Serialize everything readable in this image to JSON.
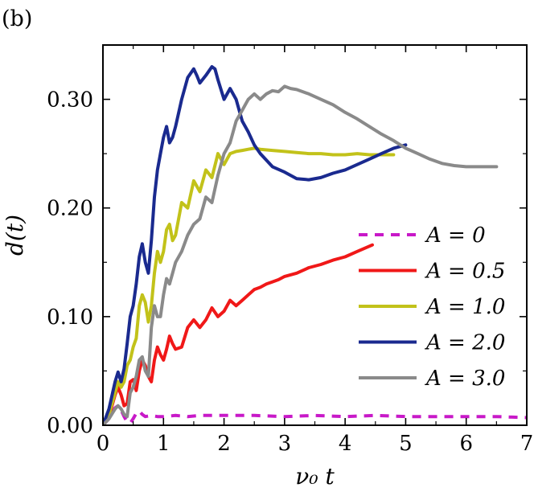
{
  "panel_label": "(b)",
  "chart_data": {
    "type": "line",
    "xlabel": "ν₀ t",
    "ylabel": "d(t)",
    "xlim": [
      0,
      7
    ],
    "ylim": [
      0,
      0.35
    ],
    "x_ticks": [
      0,
      1,
      2,
      3,
      4,
      5,
      6,
      7
    ],
    "x_tick_labels": [
      "0",
      "1",
      "2",
      "3",
      "4",
      "5",
      "6",
      "7"
    ],
    "y_ticks": [
      0,
      0.1,
      0.2,
      0.3
    ],
    "y_tick_labels": [
      "0.00",
      "0.10",
      "0.20",
      "0.30"
    ],
    "grid": false,
    "legend_position": "right",
    "series": [
      {
        "name": "A = 0",
        "color": "#c819c8",
        "dash": true,
        "x": [
          0,
          0.1,
          0.2,
          0.25,
          0.3,
          0.35,
          0.4,
          0.45,
          0.5,
          0.55,
          0.6,
          0.65,
          0.7,
          0.8,
          0.9,
          1.0,
          1.2,
          1.4,
          1.6,
          1.8,
          2.0,
          2.5,
          3.0,
          3.5,
          4.0,
          4.5,
          5.0,
          5.5,
          6.0,
          6.5,
          7.0
        ],
        "y": [
          0,
          0.006,
          0.016,
          0.018,
          0.014,
          0.008,
          0.003,
          0.002,
          0.006,
          0.011,
          0.013,
          0.01,
          0.008,
          0.009,
          0.008,
          0.008,
          0.009,
          0.008,
          0.009,
          0.009,
          0.009,
          0.009,
          0.008,
          0.009,
          0.008,
          0.009,
          0.008,
          0.008,
          0.008,
          0.008,
          0.007
        ]
      },
      {
        "name": "A = 0.5",
        "color": "#f01818",
        "dash": false,
        "x": [
          0,
          0.1,
          0.2,
          0.25,
          0.3,
          0.35,
          0.4,
          0.45,
          0.5,
          0.55,
          0.6,
          0.65,
          0.7,
          0.75,
          0.8,
          0.85,
          0.9,
          0.95,
          1.0,
          1.05,
          1.1,
          1.15,
          1.2,
          1.3,
          1.4,
          1.5,
          1.6,
          1.7,
          1.8,
          1.9,
          2.0,
          2.1,
          2.2,
          2.3,
          2.4,
          2.5,
          2.6,
          2.7,
          2.8,
          2.9,
          3.0,
          3.2,
          3.4,
          3.6,
          3.8,
          4.0,
          4.2,
          4.45
        ],
        "y": [
          0,
          0.008,
          0.028,
          0.035,
          0.028,
          0.018,
          0.02,
          0.04,
          0.042,
          0.032,
          0.05,
          0.06,
          0.055,
          0.045,
          0.04,
          0.06,
          0.072,
          0.065,
          0.06,
          0.07,
          0.082,
          0.075,
          0.07,
          0.072,
          0.09,
          0.097,
          0.09,
          0.097,
          0.108,
          0.1,
          0.105,
          0.115,
          0.11,
          0.115,
          0.12,
          0.125,
          0.127,
          0.13,
          0.132,
          0.134,
          0.137,
          0.14,
          0.145,
          0.148,
          0.152,
          0.155,
          0.16,
          0.166
        ]
      },
      {
        "name": "A = 1.0",
        "color": "#c2c21a",
        "dash": false,
        "x": [
          0,
          0.1,
          0.2,
          0.25,
          0.3,
          0.35,
          0.4,
          0.45,
          0.5,
          0.55,
          0.6,
          0.65,
          0.7,
          0.75,
          0.8,
          0.85,
          0.9,
          0.95,
          1.0,
          1.05,
          1.1,
          1.15,
          1.2,
          1.3,
          1.4,
          1.5,
          1.6,
          1.7,
          1.8,
          1.9,
          2.0,
          2.1,
          2.2,
          2.3,
          2.4,
          2.5,
          2.6,
          2.8,
          3.0,
          3.2,
          3.4,
          3.6,
          3.8,
          4.0,
          4.2,
          4.4,
          4.6,
          4.8
        ],
        "y": [
          0,
          0.01,
          0.03,
          0.04,
          0.035,
          0.04,
          0.055,
          0.06,
          0.072,
          0.08,
          0.11,
          0.12,
          0.113,
          0.095,
          0.11,
          0.14,
          0.16,
          0.15,
          0.16,
          0.18,
          0.185,
          0.17,
          0.175,
          0.205,
          0.2,
          0.225,
          0.215,
          0.235,
          0.228,
          0.25,
          0.24,
          0.25,
          0.252,
          0.253,
          0.254,
          0.255,
          0.254,
          0.253,
          0.252,
          0.251,
          0.25,
          0.25,
          0.249,
          0.249,
          0.25,
          0.249,
          0.249,
          0.249
        ]
      },
      {
        "name": "A = 2.0",
        "color": "#1a2a8f",
        "dash": false,
        "x": [
          0,
          0.1,
          0.2,
          0.25,
          0.3,
          0.35,
          0.4,
          0.45,
          0.5,
          0.55,
          0.6,
          0.65,
          0.7,
          0.75,
          0.8,
          0.85,
          0.9,
          0.95,
          1.0,
          1.05,
          1.1,
          1.15,
          1.2,
          1.3,
          1.4,
          1.5,
          1.55,
          1.6,
          1.7,
          1.8,
          1.85,
          1.9,
          2.0,
          2.1,
          2.2,
          2.3,
          2.4,
          2.5,
          2.6,
          2.8,
          3.0,
          3.2,
          3.4,
          3.6,
          3.8,
          4.0,
          4.2,
          4.4,
          4.6,
          4.8,
          5.0
        ],
        "y": [
          0,
          0.015,
          0.04,
          0.049,
          0.04,
          0.052,
          0.075,
          0.1,
          0.11,
          0.13,
          0.155,
          0.167,
          0.15,
          0.14,
          0.17,
          0.21,
          0.235,
          0.25,
          0.265,
          0.275,
          0.26,
          0.265,
          0.275,
          0.3,
          0.32,
          0.328,
          0.322,
          0.315,
          0.322,
          0.33,
          0.328,
          0.318,
          0.3,
          0.31,
          0.3,
          0.28,
          0.27,
          0.258,
          0.25,
          0.238,
          0.233,
          0.227,
          0.226,
          0.228,
          0.232,
          0.235,
          0.24,
          0.245,
          0.25,
          0.255,
          0.258
        ]
      },
      {
        "name": "A = 3.0",
        "color": "#8a8a8a",
        "dash": false,
        "x": [
          0,
          0.1,
          0.2,
          0.25,
          0.3,
          0.35,
          0.4,
          0.45,
          0.5,
          0.55,
          0.6,
          0.65,
          0.7,
          0.75,
          0.8,
          0.85,
          0.9,
          0.95,
          1.0,
          1.05,
          1.1,
          1.15,
          1.2,
          1.3,
          1.4,
          1.5,
          1.6,
          1.7,
          1.8,
          1.9,
          2.0,
          2.1,
          2.2,
          2.3,
          2.4,
          2.5,
          2.6,
          2.7,
          2.8,
          2.9,
          3.0,
          3.1,
          3.2,
          3.4,
          3.6,
          3.8,
          4.0,
          4.2,
          4.4,
          4.6,
          4.8,
          5.0,
          5.2,
          5.4,
          5.6,
          5.8,
          6.0,
          6.2,
          6.5
        ],
        "y": [
          0,
          0.006,
          0.015,
          0.018,
          0.015,
          0.01,
          0.008,
          0.03,
          0.035,
          0.045,
          0.06,
          0.063,
          0.05,
          0.045,
          0.09,
          0.11,
          0.1,
          0.1,
          0.12,
          0.135,
          0.13,
          0.14,
          0.15,
          0.16,
          0.175,
          0.185,
          0.19,
          0.21,
          0.205,
          0.23,
          0.25,
          0.26,
          0.28,
          0.29,
          0.3,
          0.305,
          0.3,
          0.305,
          0.308,
          0.307,
          0.312,
          0.31,
          0.309,
          0.305,
          0.3,
          0.295,
          0.288,
          0.282,
          0.275,
          0.268,
          0.262,
          0.255,
          0.25,
          0.245,
          0.241,
          0.239,
          0.238,
          0.238,
          0.238
        ]
      }
    ]
  }
}
